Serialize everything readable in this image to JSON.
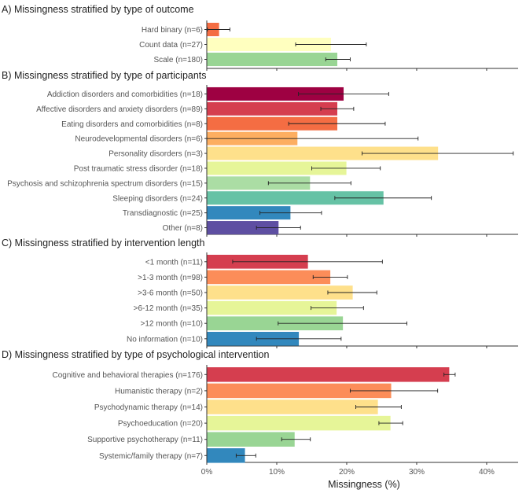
{
  "chart_data": [
    {
      "type": "bar",
      "orientation": "horizontal",
      "title": "A) Missingness stratified by type of outcome",
      "categories": [
        "Hard binary (n=6)",
        "Count data (n=27)",
        "Scale (n=180)"
      ],
      "values": [
        1.7,
        17.7,
        18.6
      ],
      "error_low": [
        0.1,
        12.7,
        17.0
      ],
      "error_high": [
        3.3,
        22.8,
        20.5
      ],
      "colors": [
        "#f46d43",
        "#ffffbf",
        "#99d594"
      ]
    },
    {
      "type": "bar",
      "orientation": "horizontal",
      "title": "B) Missingness stratified by type of participants",
      "categories": [
        "Addiction disorders and comorbidities (n=18)",
        "Affective disorders and anxiety disorders (n=89)",
        "Eating disorders and comorbidities (n=8)",
        "Neurodevelopmental disorders (n=6)",
        "Personality disorders (n=3)",
        "Post traumatic stress disorder (n=18)",
        "Psychosis and schizophrenia spectrum disorders (n=15)",
        "Sleeping disorders (n=24)",
        "Transdiagnostic (n=25)",
        "Other (n=8)"
      ],
      "values": [
        19.5,
        18.6,
        18.6,
        12.9,
        33.0,
        19.9,
        14.7,
        25.2,
        11.9,
        10.2
      ],
      "error_low": [
        13.1,
        16.3,
        11.7,
        0.0,
        22.2,
        15.0,
        8.8,
        18.3,
        7.6,
        7.1
      ],
      "error_high": [
        26.0,
        21.0,
        25.5,
        30.2,
        43.8,
        24.8,
        20.6,
        32.1,
        16.4,
        13.4
      ],
      "colors": [
        "#9e0142",
        "#d53e4f",
        "#f46d43",
        "#fdae61",
        "#fee08b",
        "#e6f598",
        "#abdda4",
        "#66c2a5",
        "#3288bd",
        "#5e4fa2"
      ]
    },
    {
      "type": "bar",
      "orientation": "horizontal",
      "title": "C) Missingness stratified by intervention length",
      "categories": [
        "<1 month (n=11)",
        ">1-3 month (n=98)",
        ">3-6 month (n=50)",
        ">6-12 month (n=35)",
        ">12 month (n=10)",
        "No information (n=10)"
      ],
      "values": [
        14.4,
        17.6,
        20.8,
        18.5,
        19.4,
        13.1
      ],
      "error_low": [
        3.7,
        15.2,
        17.3,
        14.9,
        10.2,
        7.1
      ],
      "error_high": [
        25.1,
        20.1,
        24.3,
        22.4,
        28.6,
        19.2
      ],
      "colors": [
        "#d53e4f",
        "#fc8d59",
        "#fee08b",
        "#e6f598",
        "#99d594",
        "#3288bd"
      ]
    },
    {
      "type": "bar",
      "orientation": "horizontal",
      "title": "D) Missingness stratified by type of psychological intervention",
      "categories": [
        "Cognitive and behavioral therapies (n=176)",
        "Humanistic therapy (n=2)",
        "Psychodynamic therapy (n=14)",
        "Psychoeducation (n=20)",
        "Supportive psychotherapy (n=11)",
        "Systemic/family therapy (n=7)"
      ],
      "values": [
        34.6,
        26.3,
        24.4,
        26.2,
        12.5,
        5.4
      ],
      "error_low": [
        33.9,
        20.5,
        21.3,
        24.6,
        10.7,
        4.2
      ],
      "error_high": [
        35.5,
        33.0,
        27.8,
        28.0,
        14.8,
        7.0
      ],
      "colors": [
        "#d53e4f",
        "#fc8d59",
        "#fee08b",
        "#e6f598",
        "#99d594",
        "#3288bd"
      ],
      "xlabel": "Missingness (%)",
      "xticks": [
        "0%",
        "10%",
        "20%",
        "30%",
        "40%"
      ]
    }
  ],
  "xlim": [
    0,
    44.5
  ],
  "tick_values": [
    0,
    10,
    20,
    30,
    40
  ],
  "grid": false
}
